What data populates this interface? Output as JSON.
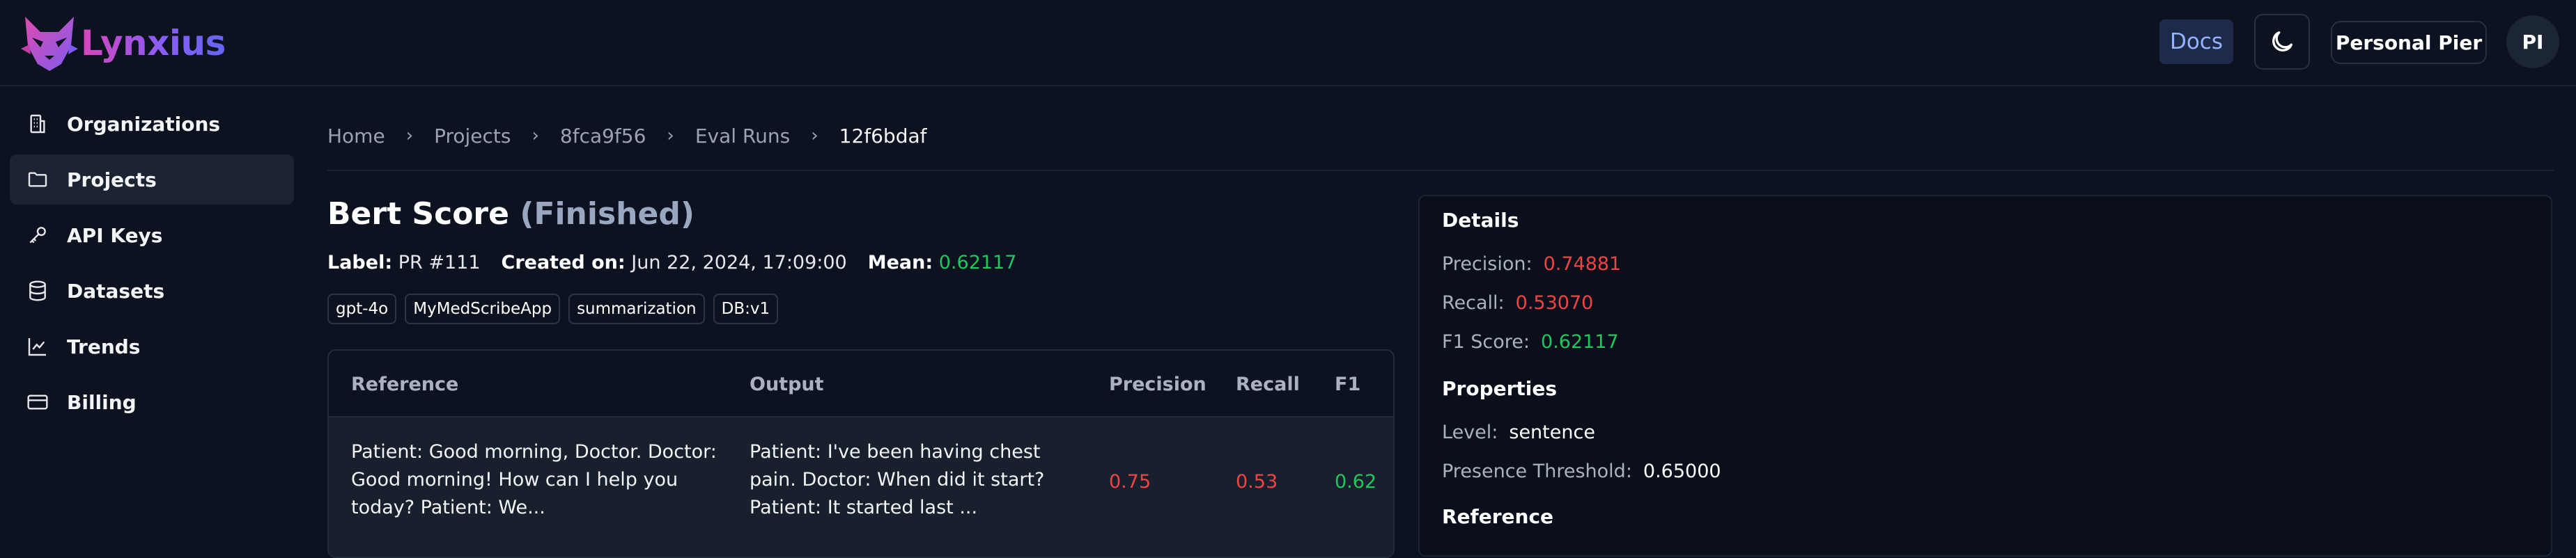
{
  "app": {
    "name": "Lynxius"
  },
  "header": {
    "docs_label": "Docs",
    "workspace_label": "Personal Pier",
    "avatar_initials": "PI"
  },
  "sidebar": {
    "items": [
      {
        "label": "Organizations",
        "icon": "building-icon",
        "active": false
      },
      {
        "label": "Projects",
        "icon": "folder-icon",
        "active": true
      },
      {
        "label": "API Keys",
        "icon": "key-icon",
        "active": false
      },
      {
        "label": "Datasets",
        "icon": "database-icon",
        "active": false
      },
      {
        "label": "Trends",
        "icon": "chart-line-icon",
        "active": false
      },
      {
        "label": "Billing",
        "icon": "credit-card-icon",
        "active": false
      }
    ]
  },
  "breadcrumb": [
    "Home",
    "Projects",
    "8fca9f56",
    "Eval Runs",
    "12f6bdaf"
  ],
  "page": {
    "title": "Bert Score",
    "status": "(Finished)",
    "label_key": "Label:",
    "label_value": "PR #111",
    "created_key": "Created on:",
    "created_value": "Jun 22, 2024, 17:09:00",
    "mean_key": "Mean:",
    "mean_value": "0.62117",
    "tags": [
      "gpt-4o",
      "MyMedScribeApp",
      "summarization",
      "DB:v1"
    ]
  },
  "table": {
    "columns": [
      "Reference",
      "Output",
      "Precision",
      "Recall",
      "F1"
    ],
    "rows": [
      {
        "reference": "Patient: Good morning, Doctor. Doctor: Good morning! How can I help you today? Patient: We...",
        "output": "Patient: I've been having chest pain. Doctor: When did it start? Patient: It started last ...",
        "precision": "0.75",
        "recall": "0.53",
        "f1": "0.62"
      }
    ]
  },
  "details": {
    "heading": "Details",
    "precision_label": "Precision:",
    "precision_value": "0.74881",
    "recall_label": "Recall:",
    "recall_value": "0.53070",
    "f1_label": "F1 Score:",
    "f1_value": "0.62117",
    "properties_heading": "Properties",
    "level_label": "Level:",
    "level_value": "sentence",
    "threshold_label": "Presence Threshold:",
    "threshold_value": "0.65000",
    "reference_heading": "Reference"
  },
  "colors": {
    "accent_green": "#22c55e",
    "accent_red": "#ef4444",
    "brand_pink": "#d946b8",
    "brand_indigo": "#6366f1"
  }
}
